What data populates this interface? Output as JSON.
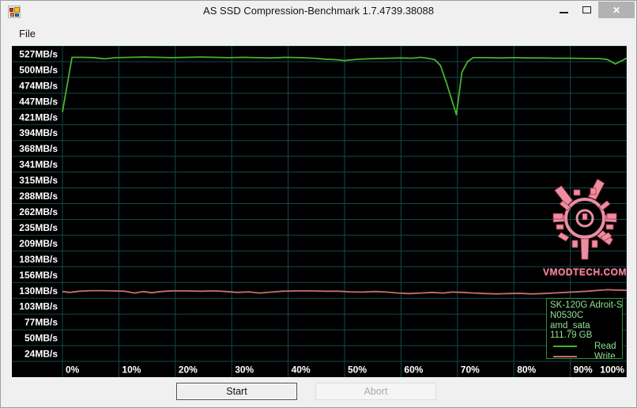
{
  "window": {
    "title": "AS SSD Compression-Benchmark 1.7.4739.38088",
    "controls": {
      "minimize_icon": "minimize-dash",
      "maximize_icon": "maximize-square",
      "close_icon": "close-x",
      "close_glyph": "✕",
      "close_bg": "#b2b2b2"
    }
  },
  "menu": {
    "file": "File"
  },
  "buttons": {
    "start": "Start",
    "abort": "Abort"
  },
  "chart_data": {
    "type": "line",
    "title": "",
    "xlabel": "",
    "ylabel": "",
    "background": "#000000",
    "grid": true,
    "grid_color": "#15494e",
    "x_axis": {
      "tick_labels": [
        "0%",
        "10%",
        "20%",
        "30%",
        "40%",
        "50%",
        "60%",
        "70%",
        "80%",
        "90%",
        "100%"
      ],
      "range_percent": [
        0,
        100
      ]
    },
    "y_axis": {
      "tick_labels": [
        "527MB/s",
        "500MB/s",
        "474MB/s",
        "447MB/s",
        "421MB/s",
        "394MB/s",
        "368MB/s",
        "341MB/s",
        "315MB/s",
        "288MB/s",
        "262MB/s",
        "235MB/s",
        "209MB/s",
        "183MB/s",
        "156MB/s",
        "130MB/s",
        "103MB/s",
        "77MB/s",
        "50MB/s",
        "24MB/s"
      ],
      "tick_values_mbps": [
        527,
        500,
        474,
        447,
        421,
        394,
        368,
        341,
        315,
        288,
        262,
        235,
        209,
        183,
        156,
        130,
        103,
        77,
        50,
        24
      ],
      "top_value": 527,
      "bottom_value": 24,
      "unit": "MB/s"
    },
    "series": [
      {
        "name": "Read",
        "color": "#47b42d",
        "points": [
          [
            0,
            429
          ],
          [
            1.7,
            521
          ],
          [
            3.5,
            521
          ],
          [
            5.5,
            520.5
          ],
          [
            7.5,
            518.5
          ],
          [
            9.5,
            520.5
          ],
          [
            12,
            521
          ],
          [
            14.5,
            521.5
          ],
          [
            17,
            521
          ],
          [
            19.5,
            520.5
          ],
          [
            22,
            521
          ],
          [
            24.5,
            521.5
          ],
          [
            27,
            521
          ],
          [
            29.5,
            520.5
          ],
          [
            32,
            521
          ],
          [
            34.5,
            520.5
          ],
          [
            37,
            520
          ],
          [
            39.5,
            521
          ],
          [
            42,
            520.5
          ],
          [
            44.5,
            519.5
          ],
          [
            46.5,
            518
          ],
          [
            48.5,
            517
          ],
          [
            50,
            515.5
          ],
          [
            52,
            517.5
          ],
          [
            54,
            518.5
          ],
          [
            56,
            519
          ],
          [
            58,
            519.5
          ],
          [
            60,
            520
          ],
          [
            62,
            519.5
          ],
          [
            63.5,
            521
          ],
          [
            65,
            519
          ],
          [
            66,
            517
          ],
          [
            67,
            507
          ],
          [
            68,
            480
          ],
          [
            69.8,
            425
          ],
          [
            70.8,
            496
          ],
          [
            71.8,
            514
          ],
          [
            72.8,
            520.5
          ],
          [
            75,
            520.5
          ],
          [
            77.5,
            520
          ],
          [
            80,
            520.5
          ],
          [
            82.5,
            520
          ],
          [
            85,
            520
          ],
          [
            87.5,
            519.5
          ],
          [
            90,
            519.5
          ],
          [
            92.5,
            519
          ],
          [
            95,
            519
          ],
          [
            96.5,
            517.5
          ],
          [
            98,
            510
          ],
          [
            100,
            519.5
          ]
        ]
      },
      {
        "name": "Write",
        "color": "#c7716d",
        "points": [
          [
            0,
            128
          ],
          [
            1.3,
            126.5
          ],
          [
            3,
            128.5
          ],
          [
            5,
            129.5
          ],
          [
            7,
            129.5
          ],
          [
            9,
            129
          ],
          [
            11,
            128.5
          ],
          [
            12.8,
            125.5
          ],
          [
            14.3,
            128
          ],
          [
            15.8,
            126
          ],
          [
            17.5,
            128
          ],
          [
            19.5,
            129
          ],
          [
            22,
            129
          ],
          [
            24.5,
            128.5
          ],
          [
            27,
            129
          ],
          [
            29,
            128
          ],
          [
            31,
            126.5
          ],
          [
            33,
            127.5
          ],
          [
            35,
            125.5
          ],
          [
            37,
            127
          ],
          [
            39,
            128.5
          ],
          [
            41.5,
            129
          ],
          [
            44,
            129
          ],
          [
            46.5,
            128.5
          ],
          [
            49,
            128.5
          ],
          [
            51,
            127.5
          ],
          [
            53,
            127
          ],
          [
            55.5,
            128
          ],
          [
            57.5,
            127
          ],
          [
            59.5,
            125.5
          ],
          [
            61.5,
            124.5
          ],
          [
            63.5,
            125.5
          ],
          [
            65.5,
            126.5
          ],
          [
            67.5,
            125.5
          ],
          [
            69,
            127
          ],
          [
            71,
            126.5
          ],
          [
            73,
            125.5
          ],
          [
            75,
            124.5
          ],
          [
            77,
            124
          ],
          [
            79,
            124.5
          ],
          [
            81,
            125
          ],
          [
            83,
            124
          ],
          [
            85,
            124.5
          ],
          [
            87,
            125.5
          ],
          [
            89,
            126.5
          ],
          [
            91,
            127.5
          ],
          [
            93,
            128.5
          ],
          [
            95,
            130
          ],
          [
            96.5,
            131
          ],
          [
            98,
            130.5
          ],
          [
            100,
            130
          ]
        ]
      }
    ],
    "legend": {
      "position": "bottom-right",
      "border_color": "#2f8f3a",
      "text_color": "#8fe393",
      "info_lines": [
        "SK-120G Adroit-S",
        "N0530C",
        "amd_sata",
        "111.79 GB"
      ],
      "entries": [
        {
          "label": "Read",
          "color": "#47b42d"
        },
        {
          "label": "Write",
          "color": "#c7716d"
        }
      ]
    },
    "watermark": {
      "text": "VMODTECH.COM",
      "color": "#ee8ba0"
    }
  }
}
